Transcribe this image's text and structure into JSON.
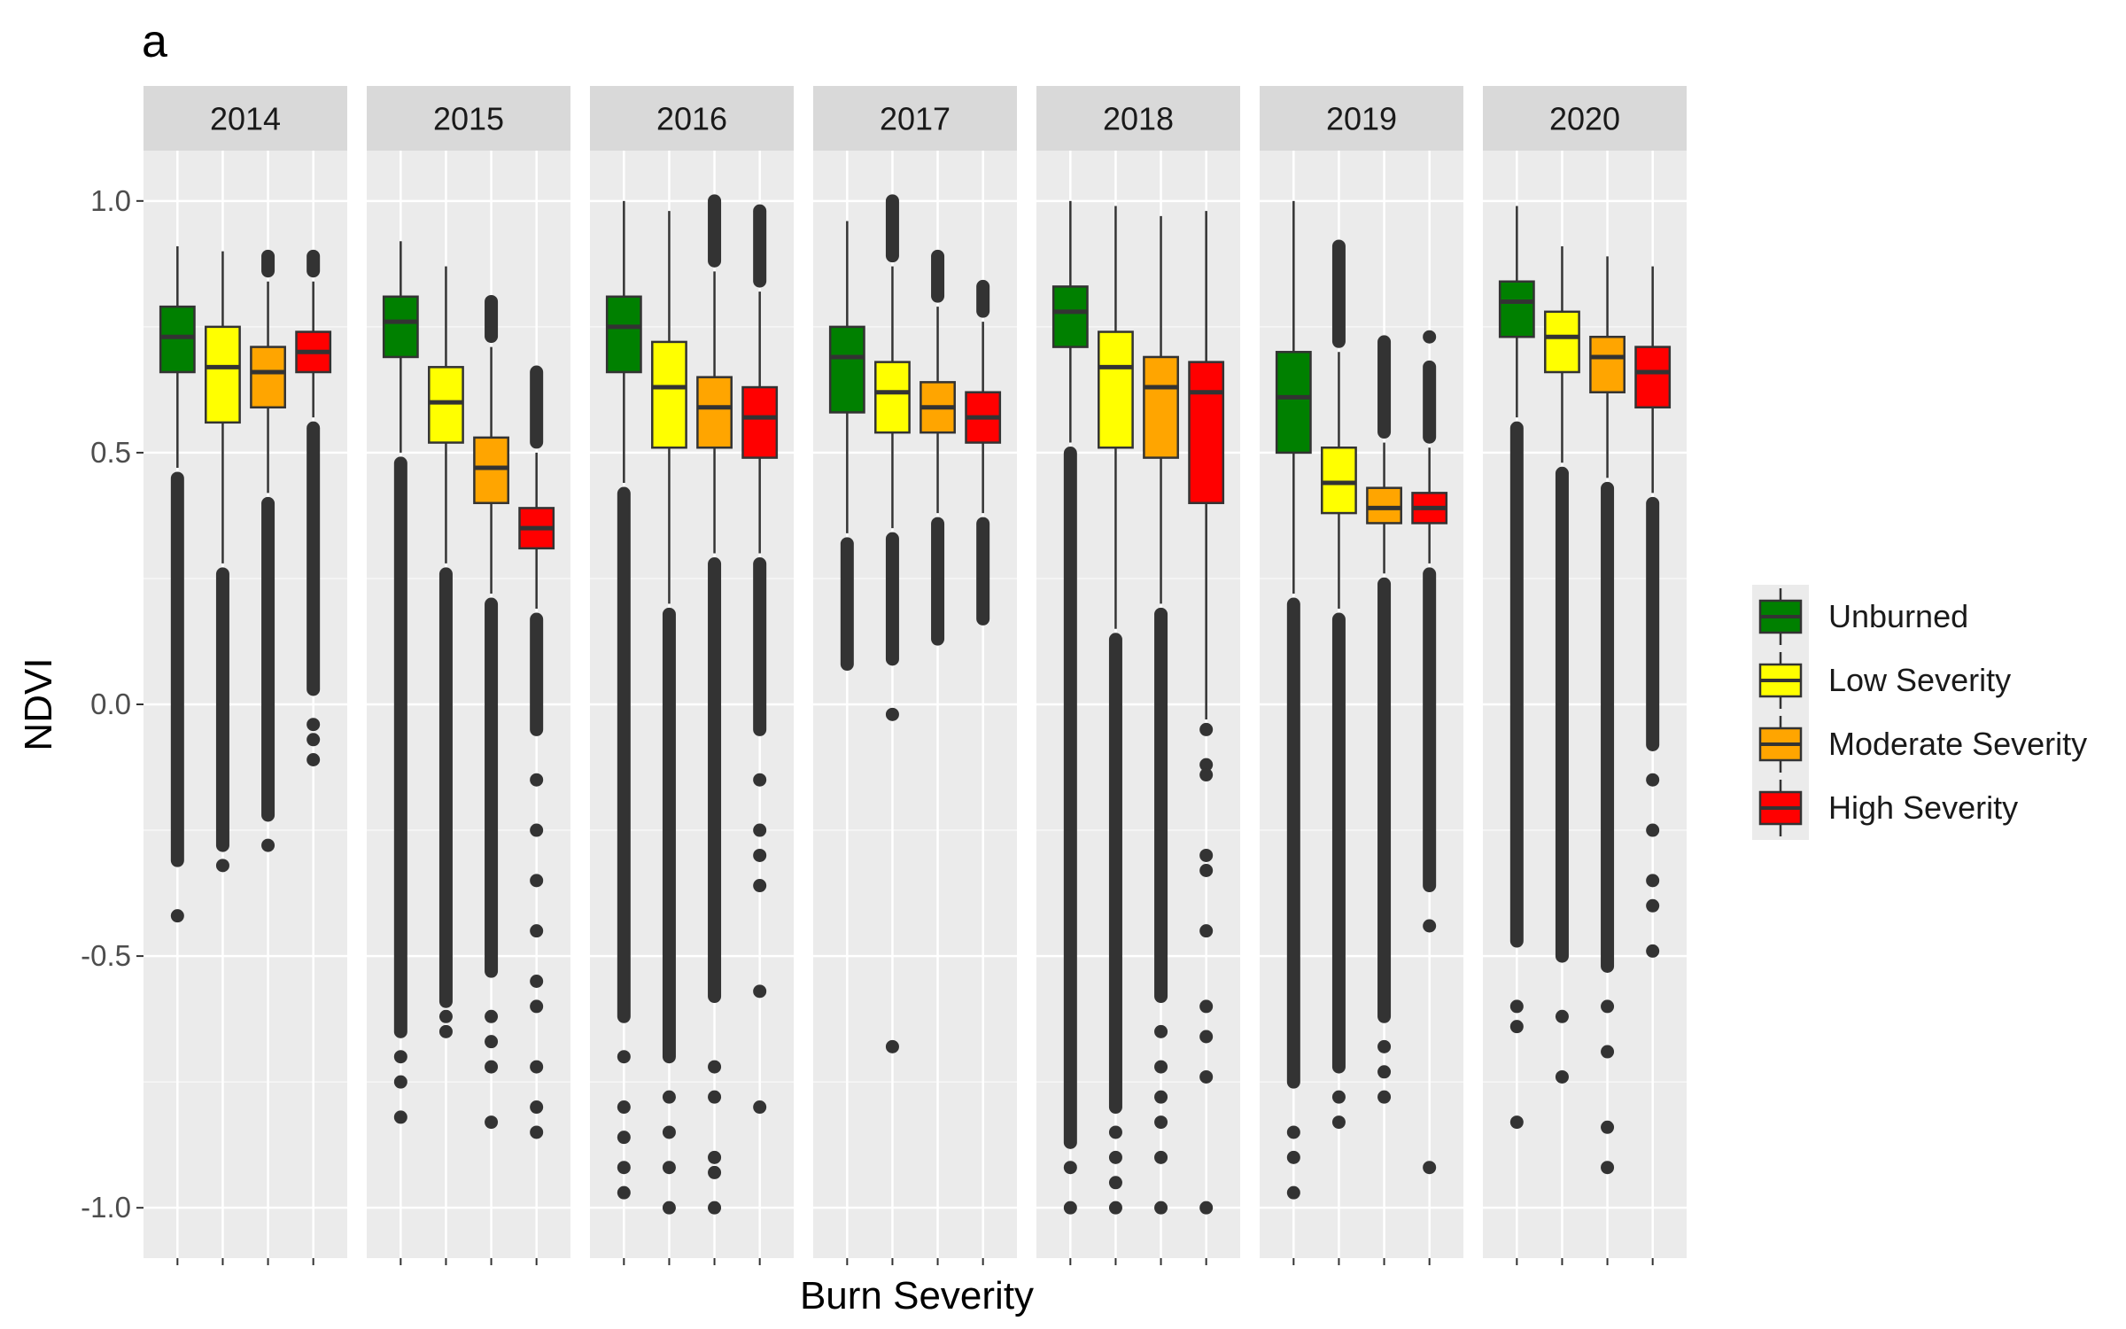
{
  "chart_data": {
    "type": "boxplot",
    "panel_label": "a",
    "xlabel": "Burn Severity",
    "ylabel": "NDVI",
    "ylim": [
      -1.1,
      1.1
    ],
    "yticks": [
      1.0,
      0.5,
      0.0,
      -0.5,
      -1.0
    ],
    "ytick_labels": [
      "1.0",
      "0.5",
      "0.0",
      "-0.5",
      "-1.0"
    ],
    "grid": true,
    "legend": {
      "position": "right",
      "entries": [
        {
          "label": "Unburned",
          "color": "#008000"
        },
        {
          "label": "Low Severity",
          "color": "#ffff00"
        },
        {
          "label": "Moderate Severity",
          "color": "#ffa500"
        },
        {
          "label": "High Severity",
          "color": "#ff0000"
        }
      ]
    },
    "facets": [
      {
        "year": "2014",
        "boxes": [
          {
            "category": "Unburned",
            "whisker_low": 0.47,
            "q1": 0.66,
            "median": 0.73,
            "q3": 0.79,
            "whisker_high": 0.91,
            "outlier_low": -0.31,
            "outlier_high": null,
            "extra_outliers": [
              -0.42
            ]
          },
          {
            "category": "Low Severity",
            "whisker_low": 0.28,
            "q1": 0.56,
            "median": 0.67,
            "q3": 0.75,
            "whisker_high": 0.9,
            "outlier_low": -0.28,
            "outlier_high": null,
            "extra_outliers": [
              -0.32
            ]
          },
          {
            "category": "Moderate Severity",
            "whisker_low": 0.42,
            "q1": 0.59,
            "median": 0.66,
            "q3": 0.71,
            "whisker_high": 0.84,
            "outlier_low": -0.22,
            "outlier_high": 0.89,
            "extra_outliers": [
              -0.28
            ]
          },
          {
            "category": "High Severity",
            "whisker_low": 0.57,
            "q1": 0.66,
            "median": 0.7,
            "q3": 0.74,
            "whisker_high": 0.84,
            "outlier_low": 0.03,
            "outlier_high": 0.89,
            "extra_outliers": [
              -0.04,
              -0.07,
              -0.11
            ]
          }
        ]
      },
      {
        "year": "2015",
        "boxes": [
          {
            "category": "Unburned",
            "whisker_low": 0.5,
            "q1": 0.69,
            "median": 0.76,
            "q3": 0.81,
            "whisker_high": 0.92,
            "outlier_low": -0.65,
            "outlier_high": null,
            "extra_outliers": [
              -0.7,
              -0.75,
              -0.82
            ]
          },
          {
            "category": "Low Severity",
            "whisker_low": 0.28,
            "q1": 0.52,
            "median": 0.6,
            "q3": 0.67,
            "whisker_high": 0.87,
            "outlier_low": -0.59,
            "outlier_high": null,
            "extra_outliers": [
              -0.62,
              -0.65
            ]
          },
          {
            "category": "Moderate Severity",
            "whisker_low": 0.22,
            "q1": 0.4,
            "median": 0.47,
            "q3": 0.53,
            "whisker_high": 0.71,
            "outlier_low": -0.53,
            "outlier_high": 0.8,
            "extra_outliers": [
              -0.62,
              -0.67,
              -0.72,
              -0.83
            ]
          },
          {
            "category": "High Severity",
            "whisker_low": 0.19,
            "q1": 0.31,
            "median": 0.35,
            "q3": 0.39,
            "whisker_high": 0.5,
            "outlier_low": -0.05,
            "outlier_high": 0.66,
            "extra_outliers": [
              -0.15,
              -0.25,
              -0.35,
              -0.45,
              -0.55,
              -0.6,
              -0.72,
              -0.8,
              -0.85
            ]
          }
        ]
      },
      {
        "year": "2016",
        "boxes": [
          {
            "category": "Unburned",
            "whisker_low": 0.44,
            "q1": 0.66,
            "median": 0.75,
            "q3": 0.81,
            "whisker_high": 1.0,
            "outlier_low": -0.62,
            "outlier_high": null,
            "extra_outliers": [
              -0.7,
              -0.8,
              -0.86,
              -0.92,
              -0.97
            ]
          },
          {
            "category": "Low Severity",
            "whisker_low": 0.2,
            "q1": 0.51,
            "median": 0.63,
            "q3": 0.72,
            "whisker_high": 0.98,
            "outlier_low": -0.7,
            "outlier_high": null,
            "extra_outliers": [
              -0.78,
              -0.85,
              -0.92,
              -1.0
            ]
          },
          {
            "category": "Moderate Severity",
            "whisker_low": 0.3,
            "q1": 0.51,
            "median": 0.59,
            "q3": 0.65,
            "whisker_high": 0.86,
            "outlier_low": -0.58,
            "outlier_high": 1.0,
            "extra_outliers": [
              -0.72,
              -0.78,
              -0.9,
              -0.93,
              -1.0
            ]
          },
          {
            "category": "High Severity",
            "whisker_low": 0.3,
            "q1": 0.49,
            "median": 0.57,
            "q3": 0.63,
            "whisker_high": 0.82,
            "outlier_low": -0.05,
            "outlier_high": 0.98,
            "extra_outliers": [
              -0.15,
              -0.25,
              -0.3,
              -0.36,
              -0.57,
              -0.8
            ]
          }
        ]
      },
      {
        "year": "2017",
        "boxes": [
          {
            "category": "Unburned",
            "whisker_low": 0.34,
            "q1": 0.58,
            "median": 0.69,
            "q3": 0.75,
            "whisker_high": 0.96,
            "outlier_low": 0.08,
            "outlier_high": null,
            "extra_outliers": []
          },
          {
            "category": "Low Severity",
            "whisker_low": 0.35,
            "q1": 0.54,
            "median": 0.62,
            "q3": 0.68,
            "whisker_high": 0.87,
            "outlier_low": 0.09,
            "outlier_high": 1.0,
            "extra_outliers": [
              -0.02,
              -0.68
            ]
          },
          {
            "category": "Moderate Severity",
            "whisker_low": 0.38,
            "q1": 0.54,
            "median": 0.59,
            "q3": 0.64,
            "whisker_high": 0.79,
            "outlier_low": 0.13,
            "outlier_high": 0.89,
            "extra_outliers": []
          },
          {
            "category": "High Severity",
            "whisker_low": 0.38,
            "q1": 0.52,
            "median": 0.57,
            "q3": 0.62,
            "whisker_high": 0.76,
            "outlier_low": 0.17,
            "outlier_high": 0.83,
            "extra_outliers": []
          }
        ]
      },
      {
        "year": "2018",
        "boxes": [
          {
            "category": "Unburned",
            "whisker_low": 0.52,
            "q1": 0.71,
            "median": 0.78,
            "q3": 0.83,
            "whisker_high": 1.0,
            "outlier_low": -0.87,
            "outlier_high": null,
            "extra_outliers": [
              -0.92,
              -1.0
            ]
          },
          {
            "category": "Low Severity",
            "whisker_low": 0.15,
            "q1": 0.51,
            "median": 0.67,
            "q3": 0.74,
            "whisker_high": 0.99,
            "outlier_low": -0.8,
            "outlier_high": null,
            "extra_outliers": [
              -0.85,
              -0.9,
              -0.95,
              -1.0
            ]
          },
          {
            "category": "Moderate Severity",
            "whisker_low": 0.2,
            "q1": 0.49,
            "median": 0.63,
            "q3": 0.69,
            "whisker_high": 0.97,
            "outlier_low": -0.58,
            "outlier_high": null,
            "extra_outliers": [
              -0.65,
              -0.72,
              -0.78,
              -0.83,
              -0.9,
              -1.0
            ]
          },
          {
            "category": "High Severity",
            "whisker_low": -0.03,
            "q1": 0.4,
            "median": 0.62,
            "q3": 0.68,
            "whisker_high": 0.98,
            "outlier_low": null,
            "outlier_high": null,
            "extra_outliers": [
              -0.05,
              -0.12,
              -0.14,
              -0.3,
              -0.33,
              -0.45,
              -0.6,
              -0.66,
              -0.74,
              -1.0
            ]
          }
        ]
      },
      {
        "year": "2019",
        "boxes": [
          {
            "category": "Unburned",
            "whisker_low": 0.22,
            "q1": 0.5,
            "median": 0.61,
            "q3": 0.7,
            "whisker_high": 1.0,
            "outlier_low": -0.75,
            "outlier_high": null,
            "extra_outliers": [
              -0.85,
              -0.9,
              -0.97
            ]
          },
          {
            "category": "Low Severity",
            "whisker_low": 0.19,
            "q1": 0.38,
            "median": 0.44,
            "q3": 0.51,
            "whisker_high": 0.7,
            "outlier_low": -0.72,
            "outlier_high": 0.91,
            "extra_outliers": [
              -0.78,
              -0.83
            ]
          },
          {
            "category": "Moderate Severity",
            "whisker_low": 0.26,
            "q1": 0.36,
            "median": 0.39,
            "q3": 0.43,
            "whisker_high": 0.52,
            "outlier_low": -0.62,
            "outlier_high": 0.72,
            "extra_outliers": [
              -0.68,
              -0.73,
              -0.78
            ]
          },
          {
            "category": "High Severity",
            "whisker_low": 0.28,
            "q1": 0.36,
            "median": 0.39,
            "q3": 0.42,
            "whisker_high": 0.51,
            "outlier_low": -0.36,
            "outlier_high": 0.67,
            "extra_outliers": [
              -0.44,
              -0.92,
              0.73
            ]
          }
        ]
      },
      {
        "year": "2020",
        "boxes": [
          {
            "category": "Unburned",
            "whisker_low": 0.57,
            "q1": 0.73,
            "median": 0.8,
            "q3": 0.84,
            "whisker_high": 0.99,
            "outlier_low": -0.47,
            "outlier_high": null,
            "extra_outliers": [
              -0.6,
              -0.64,
              -0.83
            ]
          },
          {
            "category": "Low Severity",
            "whisker_low": 0.48,
            "q1": 0.66,
            "median": 0.73,
            "q3": 0.78,
            "whisker_high": 0.91,
            "outlier_low": -0.5,
            "outlier_high": null,
            "extra_outliers": [
              -0.62,
              -0.74
            ]
          },
          {
            "category": "Moderate Severity",
            "whisker_low": 0.45,
            "q1": 0.62,
            "median": 0.69,
            "q3": 0.73,
            "whisker_high": 0.89,
            "outlier_low": -0.52,
            "outlier_high": null,
            "extra_outliers": [
              -0.6,
              -0.69,
              -0.84,
              -0.92
            ]
          },
          {
            "category": "High Severity",
            "whisker_low": 0.42,
            "q1": 0.59,
            "median": 0.66,
            "q3": 0.71,
            "whisker_high": 0.87,
            "outlier_low": -0.08,
            "outlier_high": null,
            "extra_outliers": [
              -0.15,
              -0.25,
              -0.35,
              -0.4,
              -0.49
            ]
          }
        ]
      }
    ]
  }
}
